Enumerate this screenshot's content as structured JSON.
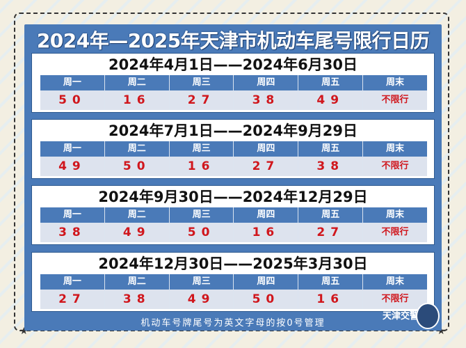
{
  "title": "2024年—2025年天津市机动车尾号限行日历",
  "weekday_headers": [
    "周一",
    "周二",
    "周三",
    "周四",
    "周五",
    "周末"
  ],
  "sections": [
    {
      "range": "2024年4月1日——2024年6月30日",
      "values": [
        "50",
        "16",
        "27",
        "38",
        "49",
        "不限行"
      ]
    },
    {
      "range": "2024年7月1日——2024年9月29日",
      "values": [
        "49",
        "50",
        "16",
        "27",
        "38",
        "不限行"
      ]
    },
    {
      "range": "2024年9月30日——2024年12月29日",
      "values": [
        "38",
        "49",
        "50",
        "16",
        "27",
        "不限行"
      ]
    },
    {
      "range": "2024年12月30日——2025年3月30日",
      "values": [
        "27",
        "38",
        "49",
        "50",
        "16",
        "不限行"
      ]
    }
  ],
  "footer_note": "机动车号牌尾号为英文字母的按0号管理",
  "logo": "天津交警",
  "colors": {
    "panel": "#4a7ab8",
    "value_text": "#d0161c",
    "value_bg": "#dde3ee"
  }
}
